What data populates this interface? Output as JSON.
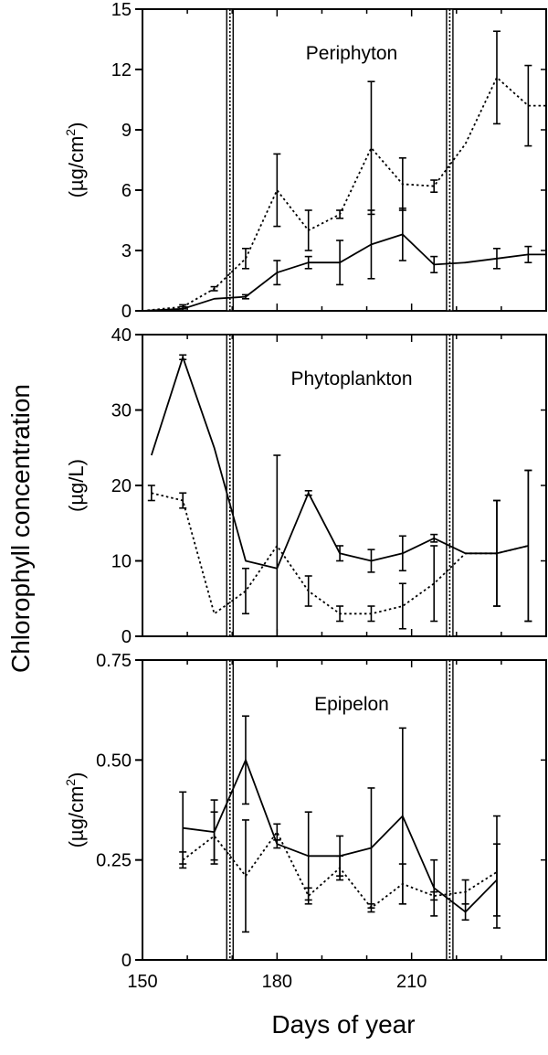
{
  "figure": {
    "shared_ylabel": "Chlorophyll concentration",
    "shared_xlabel": "Days of year",
    "x_ticks": [
      "150",
      "180",
      "210"
    ]
  },
  "chart_data": [
    {
      "type": "line",
      "title": "Periphyton",
      "ylabel_text": "(µg/cm",
      "ylabel_sup": "2",
      "ylabel_close": ")",
      "xlim": [
        150,
        240
      ],
      "ylim": [
        0,
        15
      ],
      "y_ticks": [
        "0",
        "3",
        "6",
        "9",
        "12",
        "15"
      ],
      "grid": false,
      "vertical_markers": [
        169.5,
        218.5
      ],
      "series": [
        {
          "style": "solid",
          "x": [
            150,
            159,
            166,
            173,
            180,
            187,
            194,
            201,
            208,
            215,
            222,
            229,
            236,
            240
          ],
          "y": [
            0,
            0.1,
            0.6,
            0.7,
            1.9,
            2.4,
            2.4,
            3.3,
            3.8,
            2.3,
            2.4,
            2.6,
            2.8,
            2.8
          ],
          "err": [
            0,
            0.1,
            0,
            0.1,
            0.6,
            0.3,
            1.1,
            1.7,
            1.3,
            0.4,
            0,
            0.5,
            0.4,
            0
          ]
        },
        {
          "style": "dotted",
          "x": [
            150,
            159,
            166,
            173,
            180,
            187,
            194,
            201,
            208,
            215,
            222,
            229,
            236,
            240
          ],
          "y": [
            0,
            0.2,
            1.1,
            2.6,
            6.0,
            4.0,
            4.8,
            8.1,
            6.3,
            6.2,
            8.3,
            11.6,
            10.2,
            10.2
          ],
          "err": [
            0,
            0.1,
            0.1,
            0.5,
            1.8,
            1.0,
            0.2,
            3.3,
            1.3,
            0.3,
            0,
            2.3,
            2.0,
            0
          ]
        }
      ]
    },
    {
      "type": "line",
      "title": "Phytoplankton",
      "ylabel_text": "(µg/L)",
      "xlim": [
        150,
        240
      ],
      "ylim": [
        0,
        40
      ],
      "y_ticks": [
        "0",
        "10",
        "20",
        "30",
        "40"
      ],
      "grid": false,
      "vertical_markers": [
        169.5,
        218.5
      ],
      "series": [
        {
          "style": "solid",
          "x": [
            152,
            159,
            166,
            173,
            180,
            187,
            194,
            201,
            208,
            215,
            222,
            229,
            236
          ],
          "y": [
            24,
            37,
            25,
            10,
            9,
            19,
            11,
            10,
            11,
            13,
            11,
            11,
            12
          ],
          "err": [
            0,
            0.3,
            0,
            0,
            0,
            0.3,
            1,
            1.5,
            2.3,
            0.5,
            0,
            7,
            10
          ]
        },
        {
          "style": "dotted",
          "x": [
            152,
            159,
            166,
            173,
            180,
            187,
            194,
            201,
            208,
            215,
            222,
            229,
            236
          ],
          "y": [
            19,
            18,
            3,
            6,
            12,
            6,
            3,
            3,
            4,
            7,
            11,
            11,
            12
          ],
          "err": [
            1,
            1,
            0,
            3,
            12,
            2,
            1,
            1,
            3,
            5,
            0,
            7,
            10
          ]
        }
      ]
    },
    {
      "type": "line",
      "title": "Epipelon",
      "ylabel_text": "(µg/cm",
      "ylabel_sup": "2",
      "ylabel_close": ")",
      "xlim": [
        150,
        240
      ],
      "ylim": [
        0,
        0.75
      ],
      "y_ticks": [
        "0",
        "0.25",
        "0.50",
        "0.75"
      ],
      "grid": false,
      "vertical_markers": [
        169.5,
        218.5
      ],
      "series": [
        {
          "style": "solid",
          "x": [
            159,
            166,
            173,
            180,
            187,
            194,
            201,
            208,
            215,
            222,
            229
          ],
          "y": [
            0.33,
            0.32,
            0.5,
            0.29,
            0.26,
            0.26,
            0.28,
            0.36,
            0.18,
            0.12,
            0.2
          ],
          "err": [
            0.09,
            0.08,
            0.11,
            0.01,
            0.11,
            0.05,
            0.15,
            0.22,
            0.07,
            0.02,
            0.09
          ]
        },
        {
          "style": "dotted",
          "x": [
            159,
            166,
            173,
            180,
            187,
            194,
            201,
            208,
            215,
            222,
            229
          ],
          "y": [
            0.25,
            0.31,
            0.21,
            0.32,
            0.16,
            0.23,
            0.13,
            0.19,
            0.16,
            0.17,
            0.22
          ],
          "err": [
            0.02,
            0.06,
            0.14,
            0.02,
            0.02,
            0.03,
            0.01,
            0.05,
            0.01,
            0.03,
            0.14
          ]
        }
      ]
    }
  ]
}
